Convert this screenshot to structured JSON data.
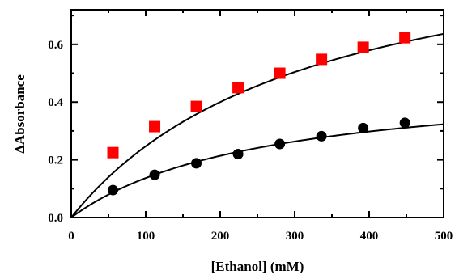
{
  "chart_data": {
    "type": "scatter",
    "xlabel": "[Ethanol] (mM)",
    "ylabel": "ΔAbsorbance",
    "xlim": [
      0,
      500
    ],
    "ylim": [
      0,
      0.72
    ],
    "x_ticks": [
      0,
      100,
      200,
      300,
      400,
      500
    ],
    "x_tick_labels": [
      "0",
      "100",
      "200",
      "300",
      "400",
      "500"
    ],
    "y_ticks": [
      0,
      0.2,
      0.4,
      0.6
    ],
    "y_tick_labels": [
      "0.0",
      "0.2",
      "0.4",
      "0.6"
    ],
    "x_minor_step": 50,
    "y_minor_step": 0.1,
    "grid": false,
    "legend": "none",
    "series": [
      {
        "marker": "square",
        "color": "#ff0000",
        "points": [
          [
            56,
            0.225
          ],
          [
            112,
            0.315
          ],
          [
            168,
            0.385
          ],
          [
            224,
            0.45
          ],
          [
            280,
            0.5
          ],
          [
            336,
            0.548
          ],
          [
            392,
            0.59
          ],
          [
            448,
            0.623
          ]
        ],
        "fit": {
          "model": "hyperbolic",
          "vmax": 1.05,
          "k": 325
        }
      },
      {
        "marker": "circle",
        "color": "#000000",
        "points": [
          [
            56,
            0.095
          ],
          [
            112,
            0.148
          ],
          [
            168,
            0.188
          ],
          [
            224,
            0.22
          ],
          [
            280,
            0.255
          ],
          [
            336,
            0.282
          ],
          [
            392,
            0.31
          ],
          [
            448,
            0.328
          ]
        ],
        "fit": {
          "model": "hyperbolic",
          "vmax": 0.49,
          "k": 258
        }
      }
    ]
  }
}
